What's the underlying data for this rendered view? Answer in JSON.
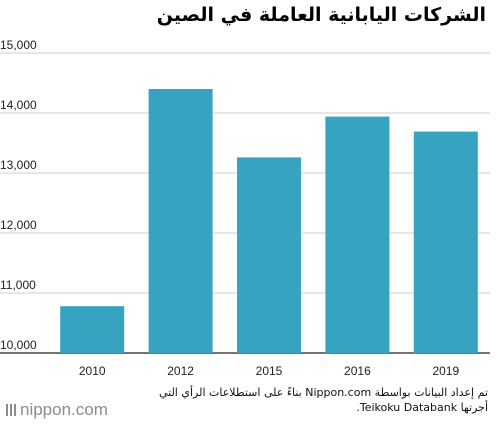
{
  "chart_data": {
    "type": "bar",
    "title": "الشركات اليابانية العاملة في الصين",
    "categories": [
      "2010",
      "2012",
      "2015",
      "2016",
      "2019"
    ],
    "values": [
      10780,
      14400,
      13260,
      13940,
      13690
    ],
    "ylim": [
      10000,
      15000
    ],
    "yticks": [
      10000,
      11000,
      12000,
      13000,
      14000,
      15000
    ],
    "ytick_labels": [
      "10,000",
      "11,000",
      "12,000",
      "13,000",
      "14,000",
      "15,000"
    ],
    "grid": true,
    "bar_color": "#36a3c1"
  },
  "source_note": "تم إعداد البيانات بواسطة Nippon.com بناءً على استطلاعات الرأي التي أجرتها Teikoku Databank.",
  "brand": {
    "name": "nippon.com",
    "logo_icon": "nippon-logo-icon",
    "color": "#8c8c8c"
  }
}
